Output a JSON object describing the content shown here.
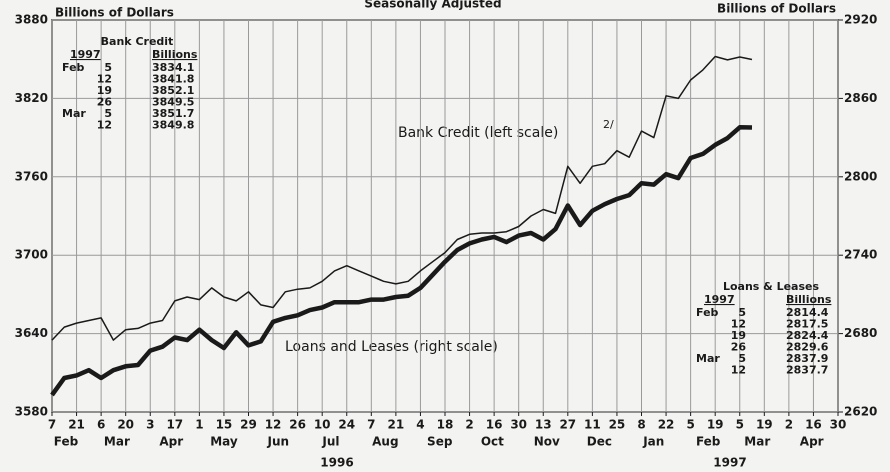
{
  "chart_data": {
    "type": "line",
    "subtitle": "Seasonally Adjusted",
    "y_label": "Billions of Dollars",
    "y2_label": "Billions of Dollars",
    "x": [
      "1996-02-07",
      "1996-02-14",
      "1996-02-21",
      "1996-02-28",
      "1996-03-06",
      "1996-03-13",
      "1996-03-20",
      "1996-03-27",
      "1996-04-03",
      "1996-04-10",
      "1996-04-17",
      "1996-04-24",
      "1996-05-01",
      "1996-05-08",
      "1996-05-15",
      "1996-05-22",
      "1996-05-29",
      "1996-06-05",
      "1996-06-12",
      "1996-06-19",
      "1996-06-26",
      "1996-07-03",
      "1996-07-10",
      "1996-07-17",
      "1996-07-24",
      "1996-07-31",
      "1996-08-07",
      "1996-08-14",
      "1996-08-21",
      "1996-08-28",
      "1996-09-04",
      "1996-09-11",
      "1996-09-18",
      "1996-09-25",
      "1996-10-02",
      "1996-10-09",
      "1996-10-16",
      "1996-10-23",
      "1996-10-30",
      "1996-11-06",
      "1996-11-13",
      "1996-11-20",
      "1996-11-27",
      "1996-12-04",
      "1996-12-11",
      "1996-12-18",
      "1996-12-25",
      "1997-01-01",
      "1997-01-08",
      "1997-01-15",
      "1997-01-22",
      "1997-01-29",
      "1997-02-05",
      "1997-02-12",
      "1997-02-19",
      "1997-02-26",
      "1997-03-05",
      "1997-03-12"
    ],
    "series": [
      {
        "name": "Bank Credit (left scale)",
        "color": "#1a1a1a",
        "width": 1.5,
        "values": [
          3635,
          3645,
          3648,
          3650,
          3652,
          3635,
          3643,
          3644,
          3648,
          3650,
          3665,
          3668,
          3666,
          3675,
          3668,
          3665,
          3672,
          3662,
          3660,
          3672,
          3674,
          3675,
          3680,
          3688,
          3692,
          3688,
          3684,
          3680,
          3678,
          3680,
          3688,
          3695,
          3702,
          3712,
          3716,
          3717,
          3717,
          3718,
          3722,
          3730,
          3735,
          3732,
          3768,
          3755,
          3768,
          3770,
          3780,
          3775,
          3795,
          3790,
          3822,
          3820,
          3834.1,
          3841.8,
          3852.1,
          3849.5,
          3851.7,
          3849.8
        ]
      },
      {
        "name": "Loans and Leases (right scale)",
        "color": "#1a1a1a",
        "width": 4.5,
        "axis": "y2",
        "values": [
          2633,
          2646,
          2648,
          2652,
          2646,
          2652,
          2655,
          2656,
          2667,
          2670,
          2677,
          2675,
          2683,
          2675,
          2669,
          2681,
          2671,
          2674,
          2689,
          2692,
          2694,
          2698,
          2700,
          2704,
          2704,
          2704,
          2706,
          2706,
          2708,
          2709,
          2715,
          2725,
          2735,
          2744,
          2749,
          2752,
          2754,
          2750,
          2755,
          2757,
          2752,
          2760,
          2778,
          2763,
          2774,
          2779,
          2783,
          2786,
          2795,
          2794,
          2802,
          2799,
          2814.4,
          2817.5,
          2824.4,
          2829.6,
          2837.9,
          2837.7
        ]
      }
    ],
    "label_note": "2/",
    "xlim": [
      "1996-02-07",
      "1997-04-30"
    ],
    "xticks": [
      {
        "value": "1996-02-07",
        "label": "7"
      },
      {
        "value": "1996-02-21",
        "label": "21"
      },
      {
        "value": "1996-03-06",
        "label": "6"
      },
      {
        "value": "1996-03-20",
        "label": "20"
      },
      {
        "value": "1996-04-03",
        "label": "3"
      },
      {
        "value": "1996-04-17",
        "label": "17"
      },
      {
        "value": "1996-05-01",
        "label": "1"
      },
      {
        "value": "1996-05-15",
        "label": "15"
      },
      {
        "value": "1996-05-29",
        "label": "29"
      },
      {
        "value": "1996-06-12",
        "label": "12"
      },
      {
        "value": "1996-06-26",
        "label": "26"
      },
      {
        "value": "1996-07-10",
        "label": "10"
      },
      {
        "value": "1996-07-24",
        "label": "24"
      },
      {
        "value": "1996-08-07",
        "label": "7"
      },
      {
        "value": "1996-08-21",
        "label": "21"
      },
      {
        "value": "1996-09-04",
        "label": "4"
      },
      {
        "value": "1996-09-18",
        "label": "18"
      },
      {
        "value": "1996-10-02",
        "label": "2"
      },
      {
        "value": "1996-10-16",
        "label": "16"
      },
      {
        "value": "1996-10-30",
        "label": "30"
      },
      {
        "value": "1996-11-13",
        "label": "13"
      },
      {
        "value": "1996-11-27",
        "label": "27"
      },
      {
        "value": "1996-12-11",
        "label": "11"
      },
      {
        "value": "1996-12-25",
        "label": "25"
      },
      {
        "value": "1997-01-08",
        "label": "8"
      },
      {
        "value": "1997-01-22",
        "label": "22"
      },
      {
        "value": "1997-02-05",
        "label": "5"
      },
      {
        "value": "1997-02-19",
        "label": "19"
      },
      {
        "value": "1997-03-05",
        "label": "5"
      },
      {
        "value": "1997-03-19",
        "label": "19"
      },
      {
        "value": "1997-04-02",
        "label": "2"
      },
      {
        "value": "1997-04-16",
        "label": "16"
      },
      {
        "value": "1997-04-30",
        "label": "30"
      }
    ],
    "months": [
      "Feb",
      "Mar",
      "Apr",
      "May",
      "Jun",
      "Jul",
      "Aug",
      "Sep",
      "Oct",
      "Nov",
      "Dec",
      "Jan",
      "Feb",
      "Mar",
      "Apr"
    ],
    "years": [
      "1996",
      "1997"
    ],
    "ylim": [
      3580,
      3880
    ],
    "yticks": [
      3580,
      3640,
      3700,
      3760,
      3820,
      3880
    ],
    "y2lim": [
      2620,
      2920
    ],
    "y2ticks": [
      2620,
      2680,
      2740,
      2800,
      2860,
      2920
    ],
    "grid": true,
    "tables": [
      {
        "title": "Bank Credit",
        "headers": [
          "1997",
          "Billions"
        ],
        "rows": [
          [
            "Feb",
            "5",
            "3834.1"
          ],
          [
            "",
            "12",
            "3841.8"
          ],
          [
            "",
            "19",
            "3852.1"
          ],
          [
            "",
            "26",
            "3849.5"
          ],
          [
            "Mar",
            "5",
            "3851.7"
          ],
          [
            "",
            "12",
            "3849.8"
          ]
        ]
      },
      {
        "title": "Loans & Leases",
        "headers": [
          "1997",
          "Billions"
        ],
        "rows": [
          [
            "Feb",
            "5",
            "2814.4"
          ],
          [
            "",
            "12",
            "2817.5"
          ],
          [
            "",
            "19",
            "2824.4"
          ],
          [
            "",
            "26",
            "2829.6"
          ],
          [
            "Mar",
            "5",
            "2837.9"
          ],
          [
            "",
            "12",
            "2837.7"
          ]
        ]
      }
    ]
  }
}
